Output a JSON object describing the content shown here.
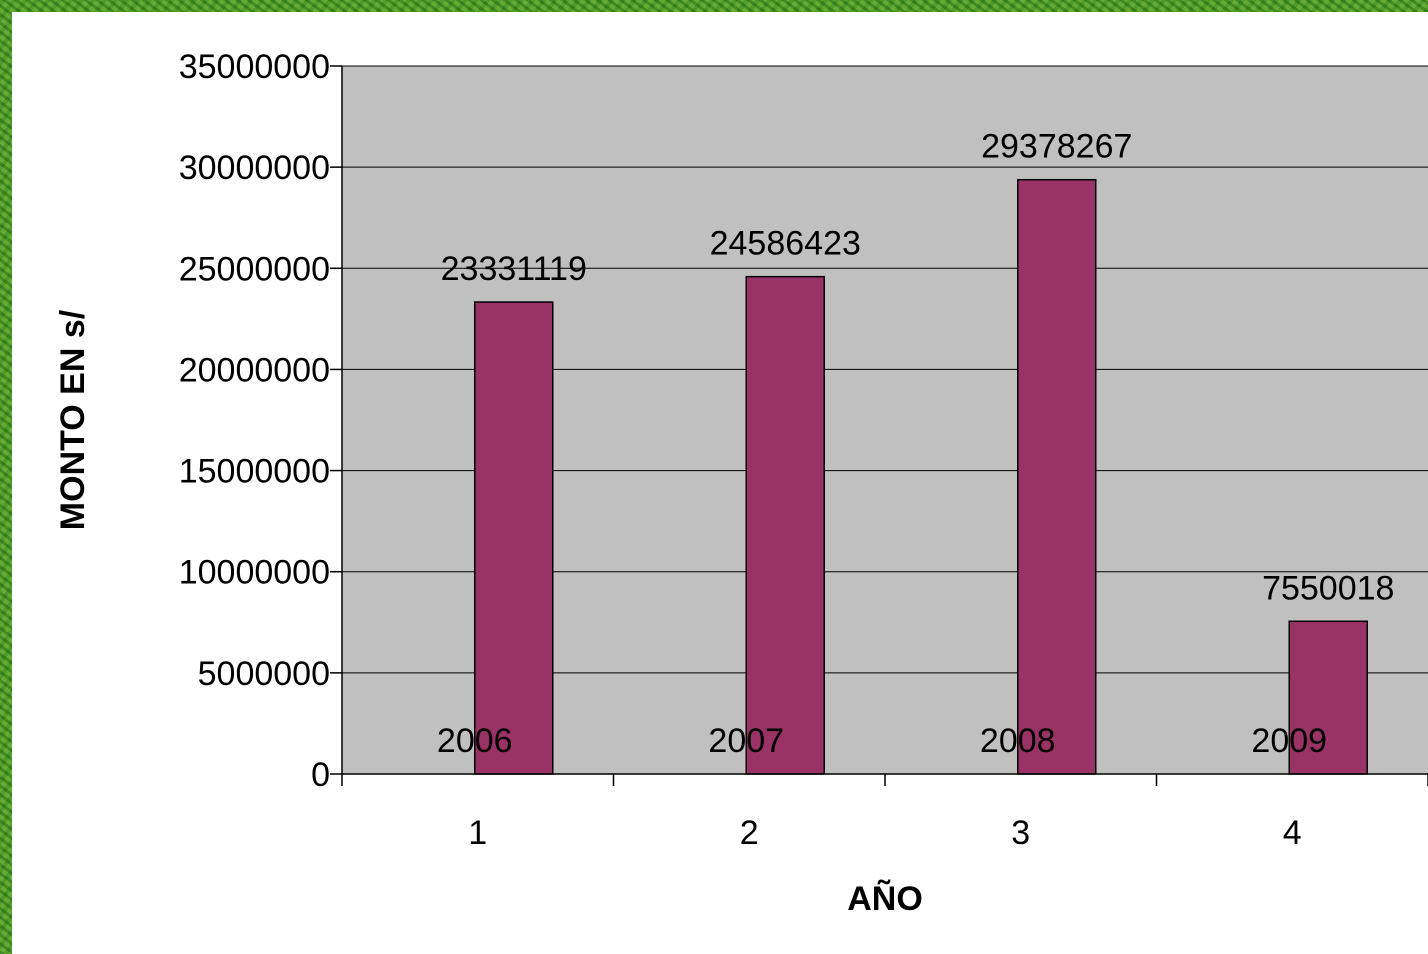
{
  "chart_data": {
    "type": "bar",
    "categories": [
      "1",
      "2",
      "3",
      "4"
    ],
    "values": [
      23331119,
      24586423,
      29378267,
      7550018
    ],
    "value_labels": [
      "23331119",
      "24586423",
      "29378267",
      "7550018"
    ],
    "year_labels": [
      "2006",
      "2007",
      "2008",
      "2009"
    ],
    "yticks": [
      "0",
      "5000000",
      "10000000",
      "15000000",
      "20000000",
      "25000000",
      "30000000",
      "35000000"
    ],
    "ylim": [
      0,
      35000000
    ],
    "ytick_step": 5000000,
    "xlabel": "AÑO",
    "ylabel": "MONTO EN s/",
    "grid": true,
    "legend": "none",
    "bar_color": "#993366",
    "plot_bg": "#c0c0c0",
    "page_bg": "#4f9a2a"
  }
}
